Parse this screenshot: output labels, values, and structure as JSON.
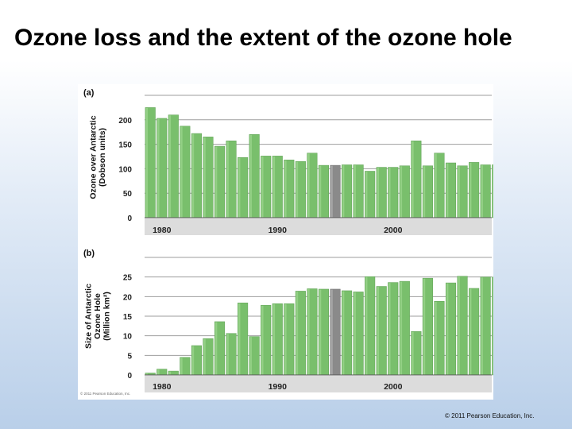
{
  "slide": {
    "title": "Ozone loss and the extent of the ozone hole",
    "copyright": "© 2011 Pearson Education, Inc.",
    "figure_credit": "© 2011 Pearson Education, Inc."
  },
  "colors": {
    "bar": "#79bf6c",
    "bar_light": "#93d085",
    "bar_missing": "#8a8a8a",
    "grid": "#9e9e9e",
    "tick_band": "#dcdcdc"
  },
  "chart_data": [
    {
      "panel": "(a)",
      "type": "bar",
      "ylabel": "Ozone over Antarctic (Dobson units)",
      "ylabel_lines": [
        "Ozone over Antarctic",
        "(Dobson units)"
      ],
      "yticks": [
        0,
        50,
        100,
        150,
        200
      ],
      "ylim": [
        0,
        250
      ],
      "grid": true,
      "x_start": 1979,
      "xtick_labels": [
        "1980",
        "1990",
        "2000"
      ],
      "xtick_years": [
        1980,
        1990,
        2000
      ],
      "missing_year": 1995,
      "x": [
        1979,
        1980,
        1981,
        1982,
        1983,
        1984,
        1985,
        1986,
        1987,
        1988,
        1989,
        1990,
        1991,
        1992,
        1993,
        1994,
        1995,
        1996,
        1997,
        1998,
        1999,
        2000,
        2001,
        2002,
        2003,
        2004,
        2005,
        2006,
        2007,
        2008,
        2009
      ],
      "values": [
        225,
        203,
        210,
        187,
        172,
        165,
        146,
        157,
        123,
        170,
        126,
        126,
        118,
        115,
        132,
        107,
        107,
        108,
        108,
        95,
        103,
        103,
        106,
        157,
        106,
        132,
        112,
        106,
        113,
        108,
        108
      ]
    },
    {
      "panel": "(b)",
      "type": "bar",
      "ylabel": "Size of Antarctic Ozone Hole (Million km²)",
      "ylabel_lines": [
        "Size of Antarctic",
        "Ozone Hole",
        "(Million km²)"
      ],
      "yticks": [
        0,
        5,
        10,
        15,
        20,
        25
      ],
      "ylim": [
        0,
        30
      ],
      "grid": true,
      "x_start": 1979,
      "xtick_labels": [
        "1980",
        "1990",
        "2000"
      ],
      "xtick_years": [
        1980,
        1990,
        2000
      ],
      "missing_year": 1995,
      "x": [
        1979,
        1980,
        1981,
        1982,
        1983,
        1984,
        1985,
        1986,
        1987,
        1988,
        1989,
        1990,
        1991,
        1992,
        1993,
        1994,
        1995,
        1996,
        1997,
        1998,
        1999,
        2000,
        2001,
        2002,
        2003,
        2004,
        2005,
        2006,
        2007,
        2008,
        2009
      ],
      "values": [
        0.5,
        1.5,
        1,
        4.5,
        7.5,
        9.3,
        13.6,
        10.6,
        18.4,
        9.8,
        17.8,
        18.2,
        18.2,
        21.4,
        22,
        21.9,
        21.9,
        21.5,
        21.2,
        25.1,
        22.6,
        23.6,
        23.9,
        11.1,
        24.7,
        18.8,
        23.5,
        25.2,
        22.1,
        25.0,
        25.0
      ]
    }
  ]
}
